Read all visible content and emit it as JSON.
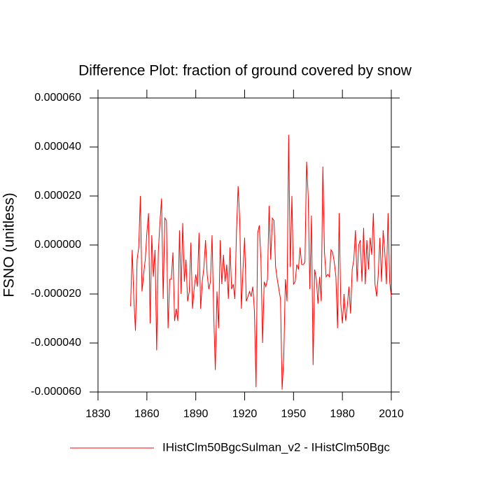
{
  "chart_data": {
    "type": "line",
    "title": "Difference Plot: fraction of ground covered by snow",
    "y_label": "FSNO  (unitless)",
    "x": [
      1850,
      1851,
      1852,
      1853,
      1854,
      1855,
      1856,
      1857,
      1858,
      1859,
      1860,
      1861,
      1862,
      1863,
      1864,
      1865,
      1866,
      1867,
      1868,
      1869,
      1870,
      1871,
      1872,
      1873,
      1874,
      1875,
      1876,
      1877,
      1878,
      1879,
      1880,
      1881,
      1882,
      1883,
      1884,
      1885,
      1886,
      1887,
      1888,
      1889,
      1890,
      1891,
      1892,
      1893,
      1894,
      1895,
      1896,
      1897,
      1898,
      1899,
      1900,
      1901,
      1902,
      1903,
      1904,
      1905,
      1906,
      1907,
      1908,
      1909,
      1910,
      1911,
      1912,
      1913,
      1914,
      1915,
      1916,
      1917,
      1918,
      1919,
      1920,
      1921,
      1922,
      1923,
      1924,
      1925,
      1926,
      1927,
      1928,
      1929,
      1930,
      1931,
      1932,
      1933,
      1934,
      1935,
      1936,
      1937,
      1938,
      1939,
      1940,
      1941,
      1942,
      1943,
      1944,
      1945,
      1946,
      1947,
      1948,
      1949,
      1950,
      1951,
      1952,
      1953,
      1954,
      1955,
      1956,
      1957,
      1958,
      1959,
      1960,
      1961,
      1962,
      1963,
      1964,
      1965,
      1966,
      1967,
      1968,
      1969,
      1970,
      1971,
      1972,
      1973,
      1974,
      1975,
      1976,
      1977,
      1978,
      1979,
      1980,
      1981,
      1982,
      1983,
      1984,
      1985,
      1986,
      1987,
      1988,
      1989,
      1990,
      1991,
      1992,
      1993,
      1994,
      1995,
      1996,
      1997,
      1998,
      1999,
      2000,
      2001,
      2002,
      2003,
      2004,
      2005,
      2006,
      2007,
      2008,
      2009,
      2010
    ],
    "series": [
      {
        "name": "IHistClm50BgcSulman_v2 - IHistClm50Bgc",
        "color": "#ff0000",
        "values": [
          -2.5e-05,
          -2e-06,
          -2.2e-05,
          -3.5e-05,
          -6e-06,
          -1e-06,
          2e-05,
          -1.9e-05,
          -1.2e-05,
          -6e-06,
          5e-06,
          1.3e-05,
          -3.2e-05,
          4e-06,
          -1.3e-05,
          -2e-06,
          -4.3e-05,
          -3e-06,
          9e-06,
          1.9e-05,
          -2.2e-05,
          1.1e-05,
          1e-05,
          -3.4e-05,
          -1.4e-05,
          -1.4e-05,
          -3e-06,
          -3.1e-05,
          -2.6e-05,
          -3.1e-05,
          6e-06,
          -2e-05,
          9e-06,
          -1.5e-05,
          -6e-06,
          -2.3e-05,
          -1.9e-05,
          1e-06,
          -2.6e-05,
          -1.8e-05,
          -1.2e-05,
          -1.7e-05,
          5e-06,
          -2.6e-05,
          -1.5e-05,
          -9e-06,
          2e-06,
          -1.2e-05,
          -1.8e-05,
          -1.5e-05,
          4e-06,
          -2.8e-05,
          -5.1e-05,
          -1.9e-05,
          -3.4e-05,
          2e-06,
          -1.6e-05,
          -4e-06,
          -1.5e-05,
          -8e-06,
          -2.2e-05,
          -1e-06,
          -1.8e-05,
          -1.6e-05,
          -2.2e-05,
          6e-06,
          2.4e-05,
          1e-05,
          -2.6e-05,
          -1e-05,
          3e-06,
          -2.3e-05,
          -2.1e-05,
          -1.9e-05,
          -2.1e-05,
          -1.7e-05,
          -2.7e-05,
          -5.8e-05,
          5e-06,
          8e-06,
          -6e-06,
          -4e-05,
          -1.5e-05,
          -1.7e-05,
          -1.4e-05,
          1.6e-05,
          -6e-06,
          1.1e-05,
          1e-05,
          -9e-06,
          -1.4e-05,
          -1.8e-05,
          -2.2e-05,
          -5.9e-05,
          -4.6e-05,
          -1.4e-05,
          -2.3e-05,
          4.5e-05,
          -9e-06,
          2e-05,
          -1.6e-05,
          -1.5e-05,
          -8e-06,
          -1e-05,
          -1e-06,
          -8e-06,
          -8e-06,
          -7e-06,
          3.4e-05,
          2e-05,
          -1.8e-05,
          1.2e-05,
          -4.9e-05,
          -1e-05,
          -1.4e-05,
          -2.4e-05,
          -1.3e-05,
          -2.3e-05,
          3.2e-05,
          -3e-06,
          -1.3e-05,
          -1.2e-05,
          -1.3e-05,
          -2e-06,
          -3e-06,
          -7e-06,
          -1.3e-05,
          -3.4e-05,
          1.3e-05,
          -2.4e-05,
          -3.2e-05,
          -2e-05,
          -3.1e-05,
          -2.5e-05,
          -1.7e-05,
          -2.8e-05,
          -1e-05,
          -6e-06,
          6e-06,
          -1.5e-05,
          0.0,
          2e-06,
          -1.5e-05,
          7e-06,
          -1.6e-05,
          2e-06,
          -1e-05,
          3e-06,
          -4e-06,
          1.3e-05,
          -1.6e-05,
          -2.1e-05,
          -1.2e-05,
          3e-06,
          -1.5e-05,
          6e-06,
          -3e-06,
          -1.6e-05,
          1.3e-05,
          -1.5e-05,
          -2.1e-05
        ]
      }
    ],
    "xlim": [
      1830,
      2010
    ],
    "xticks": [
      1830,
      1860,
      1890,
      1920,
      1950,
      1980,
      2010
    ],
    "ylim": [
      -6e-05,
      6e-05
    ],
    "yticks": [
      {
        "value": -6e-05,
        "label": "-0.000060"
      },
      {
        "value": -4e-05,
        "label": "-0.000040"
      },
      {
        "value": -2e-05,
        "label": "-0.000020"
      },
      {
        "value": 0,
        "label": "0.000000"
      },
      {
        "value": 2e-05,
        "label": "0.000020"
      },
      {
        "value": 4e-05,
        "label": "0.000040"
      },
      {
        "value": 6e-05,
        "label": "0.000060"
      }
    ],
    "grid": false
  }
}
